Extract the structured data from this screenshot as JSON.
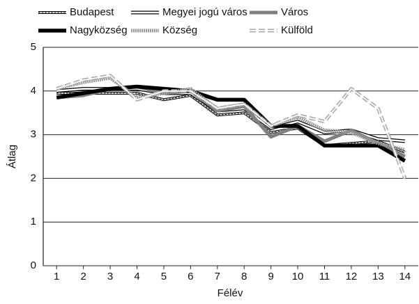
{
  "chart_data": {
    "type": "line",
    "x_label": "Félév",
    "y_label": "Átlag",
    "categories": [
      "1",
      "2",
      "3",
      "4",
      "5",
      "6",
      "7",
      "8",
      "9",
      "10",
      "11",
      "12",
      "13",
      "14"
    ],
    "series": [
      {
        "name": "Budapest",
        "color": "#000000",
        "values": [
          3.95,
          3.95,
          3.95,
          3.95,
          3.8,
          3.9,
          3.45,
          3.5,
          3.05,
          3.15,
          2.75,
          2.8,
          2.85,
          2.6
        ]
      },
      {
        "name": "Megyei jogú város",
        "color": "#ffffff",
        "values": [
          4.0,
          4.05,
          4.05,
          4.05,
          3.95,
          3.95,
          3.55,
          3.6,
          3.15,
          3.3,
          3.05,
          3.1,
          2.9,
          2.85
        ]
      },
      {
        "name": "Város",
        "color": "#808080",
        "values": [
          3.85,
          3.9,
          4.05,
          4.1,
          3.95,
          4.0,
          3.55,
          3.65,
          2.95,
          3.2,
          2.85,
          3.1,
          2.8,
          2.5
        ]
      },
      {
        "name": "Nagyközség",
        "color": "#000000",
        "values": [
          3.85,
          3.95,
          4.05,
          4.1,
          4.05,
          4.0,
          3.8,
          3.8,
          3.2,
          3.2,
          2.75,
          2.75,
          2.75,
          2.4
        ]
      },
      {
        "name": "Község",
        "color": "#999999",
        "values": [
          4.05,
          4.2,
          4.3,
          3.85,
          3.95,
          4.05,
          3.6,
          3.7,
          3.2,
          3.4,
          3.1,
          3.05,
          2.8,
          2.65
        ]
      },
      {
        "name": "Külföld",
        "color": "#aaaaaa",
        "values": [
          4.05,
          4.25,
          4.35,
          3.8,
          4.0,
          4.0,
          3.6,
          3.7,
          3.2,
          3.45,
          3.3,
          4.05,
          3.6,
          2.0
        ]
      }
    ],
    "ylim": [
      0,
      5
    ],
    "yticks": [
      0,
      1,
      2,
      3,
      4,
      5
    ],
    "grid": true
  }
}
